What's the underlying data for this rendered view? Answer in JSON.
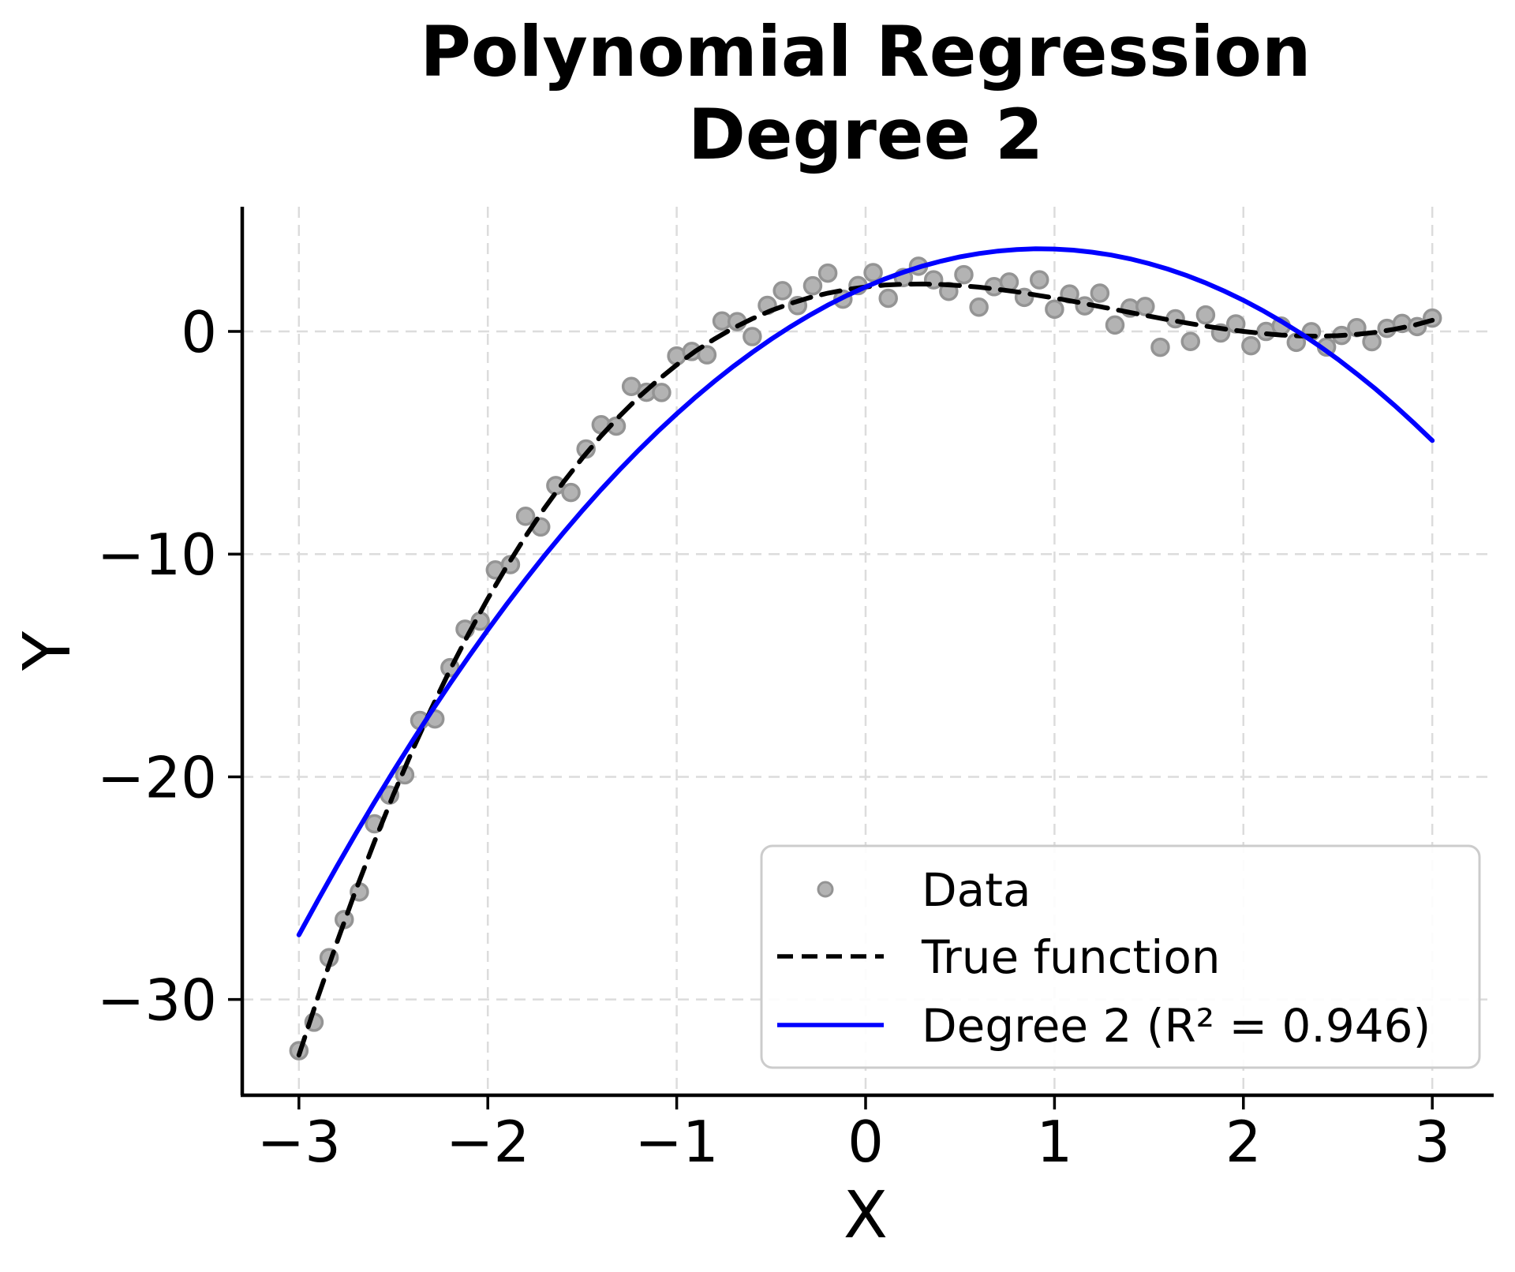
{
  "colors": {
    "background": "#ffffff",
    "axis": "#000000",
    "grid": "#dcdcdc",
    "true_line": "#000000",
    "fit_line": "#0000ff",
    "points_fill": "#b3b3b3",
    "points_edge": "#949494",
    "legend_border": "#cccccc"
  },
  "chart_data": {
    "type": "scatter",
    "title": "Polynomial Regression\nDegree 2",
    "title_lines": [
      "Polynomial Regression",
      "Degree 2"
    ],
    "xlabel": "X",
    "ylabel": "Y",
    "xlim": [
      -3.3,
      3.3
    ],
    "ylim": [
      -34.3,
      5.6
    ],
    "grid": true,
    "legend_position": "lower right",
    "fit": {
      "degree": 2,
      "r_squared": 0.946
    },
    "x_ticks": [
      {
        "value": -3,
        "label": "−3"
      },
      {
        "value": -2,
        "label": "−2"
      },
      {
        "value": -1,
        "label": "−1"
      },
      {
        "value": 0,
        "label": "0"
      },
      {
        "value": 1,
        "label": "1"
      },
      {
        "value": 2,
        "label": "2"
      },
      {
        "value": 3,
        "label": "3"
      }
    ],
    "y_ticks": [
      {
        "value": 0,
        "label": "0"
      },
      {
        "value": -10,
        "label": "−10"
      },
      {
        "value": -20,
        "label": "−20"
      },
      {
        "value": -30,
        "label": "−30"
      }
    ],
    "series": [
      {
        "name": "Data",
        "type": "scatter",
        "fill": "#b3b3b3",
        "edge": "#949494",
        "points": [
          [
            -3.0,
            -32.3
          ],
          [
            -2.92,
            -31.02
          ],
          [
            -2.84,
            -28.12
          ],
          [
            -2.76,
            -26.41
          ],
          [
            -2.68,
            -25.17
          ],
          [
            -2.6,
            -22.11
          ],
          [
            -2.52,
            -20.82
          ],
          [
            -2.44,
            -19.91
          ],
          [
            -2.36,
            -17.47
          ],
          [
            -2.28,
            -17.4
          ],
          [
            -2.2,
            -15.1
          ],
          [
            -2.12,
            -13.37
          ],
          [
            -2.04,
            -13.01
          ],
          [
            -1.96,
            -10.71
          ],
          [
            -1.88,
            -10.47
          ],
          [
            -1.8,
            -8.3
          ],
          [
            -1.72,
            -8.78
          ],
          [
            -1.64,
            -6.92
          ],
          [
            -1.56,
            -7.23
          ],
          [
            -1.48,
            -5.28
          ],
          [
            -1.4,
            -4.19
          ],
          [
            -1.32,
            -4.25
          ],
          [
            -1.24,
            -2.47
          ],
          [
            -1.16,
            -2.73
          ],
          [
            -1.08,
            -2.74
          ],
          [
            -1.0,
            -1.1
          ],
          [
            -0.92,
            -0.9
          ],
          [
            -0.84,
            -1.05
          ],
          [
            -0.76,
            0.47
          ],
          [
            -0.68,
            0.44
          ],
          [
            -0.6,
            -0.23
          ],
          [
            -0.52,
            1.17
          ],
          [
            -0.44,
            1.83
          ],
          [
            -0.36,
            1.16
          ],
          [
            -0.28,
            2.05
          ],
          [
            -0.2,
            2.62
          ],
          [
            -0.12,
            1.45
          ],
          [
            -0.04,
            2.06
          ],
          [
            0.04,
            2.64
          ],
          [
            0.12,
            1.49
          ],
          [
            0.2,
            2.42
          ],
          [
            0.28,
            2.93
          ],
          [
            0.36,
            2.32
          ],
          [
            0.44,
            1.8
          ],
          [
            0.52,
            2.55
          ],
          [
            0.6,
            1.09
          ],
          [
            0.68,
            2.01
          ],
          [
            0.76,
            2.22
          ],
          [
            0.84,
            1.53
          ],
          [
            0.92,
            2.32
          ],
          [
            1.0,
            1.0
          ],
          [
            1.08,
            1.68
          ],
          [
            1.16,
            1.15
          ],
          [
            1.24,
            1.72
          ],
          [
            1.32,
            0.29
          ],
          [
            1.4,
            1.05
          ],
          [
            1.48,
            1.12
          ],
          [
            1.56,
            -0.71
          ],
          [
            1.64,
            0.57
          ],
          [
            1.72,
            -0.45
          ],
          [
            1.8,
            0.74
          ],
          [
            1.88,
            -0.07
          ],
          [
            1.96,
            0.34
          ],
          [
            2.04,
            -0.64
          ],
          [
            2.12,
            0.0
          ],
          [
            2.2,
            0.24
          ],
          [
            2.28,
            -0.49
          ],
          [
            2.36,
            -0.01
          ],
          [
            2.44,
            -0.7
          ],
          [
            2.52,
            -0.18
          ],
          [
            2.6,
            0.17
          ],
          [
            2.68,
            -0.46
          ],
          [
            2.76,
            0.14
          ],
          [
            2.84,
            0.36
          ],
          [
            2.92,
            0.22
          ],
          [
            3.0,
            0.6
          ]
        ]
      },
      {
        "name": "True function",
        "type": "line",
        "dash": "dashed",
        "color": "#000000",
        "x": [
          -3,
          -2.9,
          -2.8,
          -2.7,
          -2.6,
          -2.5,
          -2.4,
          -2.3,
          -2.2,
          -2.1,
          -2,
          -1.9,
          -1.8,
          -1.7,
          -1.6,
          -1.5,
          -1.4,
          -1.3,
          -1.2,
          -1.1,
          -1,
          -0.9,
          -0.8,
          -0.7,
          -0.6,
          -0.5,
          -0.4,
          -0.3,
          -0.2,
          -0.1,
          0,
          0.1,
          0.2,
          0.3,
          0.4,
          0.5,
          0.6,
          0.7,
          0.8,
          0.9,
          1,
          1.1,
          1.2,
          1.3,
          1.4,
          1.5,
          1.6,
          1.7,
          1.8,
          1.9,
          2,
          2.1,
          2.2,
          2.3,
          2.4,
          2.5,
          2.6,
          2.7,
          2.8,
          2.9,
          3
        ],
        "y": [
          -32.5,
          -29.91,
          -27.46,
          -25.12,
          -22.91,
          -20.81,
          -18.83,
          -16.96,
          -15.2,
          -13.55,
          -12.0,
          -10.55,
          -9.2,
          -7.94,
          -6.77,
          -5.69,
          -4.69,
          -3.78,
          -2.94,
          -2.19,
          -1.5,
          -0.88,
          -0.34,
          0.15,
          0.57,
          0.94,
          1.25,
          1.51,
          1.72,
          1.88,
          2.0,
          2.08,
          2.12,
          2.13,
          2.11,
          2.06,
          1.99,
          1.89,
          1.78,
          1.64,
          1.5,
          1.35,
          1.18,
          1.02,
          0.85,
          0.69,
          0.53,
          0.38,
          0.24,
          0.11,
          0.0,
          -0.09,
          -0.16,
          -0.2,
          -0.21,
          -0.19,
          -0.13,
          -0.04,
          0.1,
          0.27,
          0.5
        ]
      },
      {
        "name": "Degree 2 (R² = 0.946)",
        "type": "line",
        "dash": "solid",
        "color": "#0000ff",
        "x": [
          -3,
          -2.9,
          -2.8,
          -2.7,
          -2.6,
          -2.5,
          -2.4,
          -2.3,
          -2.2,
          -2.1,
          -2,
          -1.9,
          -1.8,
          -1.7,
          -1.6,
          -1.5,
          -1.4,
          -1.3,
          -1.2,
          -1.1,
          -1,
          -0.9,
          -0.8,
          -0.7,
          -0.6,
          -0.5,
          -0.4,
          -0.3,
          -0.2,
          -0.1,
          0,
          0.1,
          0.2,
          0.3,
          0.4,
          0.5,
          0.6,
          0.7,
          0.8,
          0.9,
          1,
          1.1,
          1.2,
          1.3,
          1.4,
          1.5,
          1.6,
          1.7,
          1.8,
          1.9,
          2,
          2.1,
          2.2,
          2.3,
          2.4,
          2.5,
          2.6,
          2.7,
          2.8,
          2.9,
          3
        ],
        "y": [
          -27.1,
          -25.55,
          -24.04,
          -22.57,
          -21.14,
          -19.75,
          -18.4,
          -17.09,
          -15.82,
          -14.59,
          -13.4,
          -12.25,
          -11.14,
          -10.07,
          -9.04,
          -8.05,
          -7.1,
          -6.19,
          -5.32,
          -4.49,
          -3.7,
          -2.95,
          -2.24,
          -1.57,
          -0.94,
          -0.35,
          0.2,
          0.71,
          1.18,
          1.61,
          2.0,
          2.35,
          2.66,
          2.93,
          3.16,
          3.35,
          3.5,
          3.61,
          3.68,
          3.71,
          3.7,
          3.65,
          3.56,
          3.43,
          3.26,
          3.05,
          2.8,
          2.51,
          2.18,
          1.81,
          1.4,
          0.95,
          0.46,
          -0.07,
          -0.64,
          -1.25,
          -1.9,
          -2.59,
          -3.32,
          -4.09,
          -4.9
        ]
      }
    ]
  }
}
